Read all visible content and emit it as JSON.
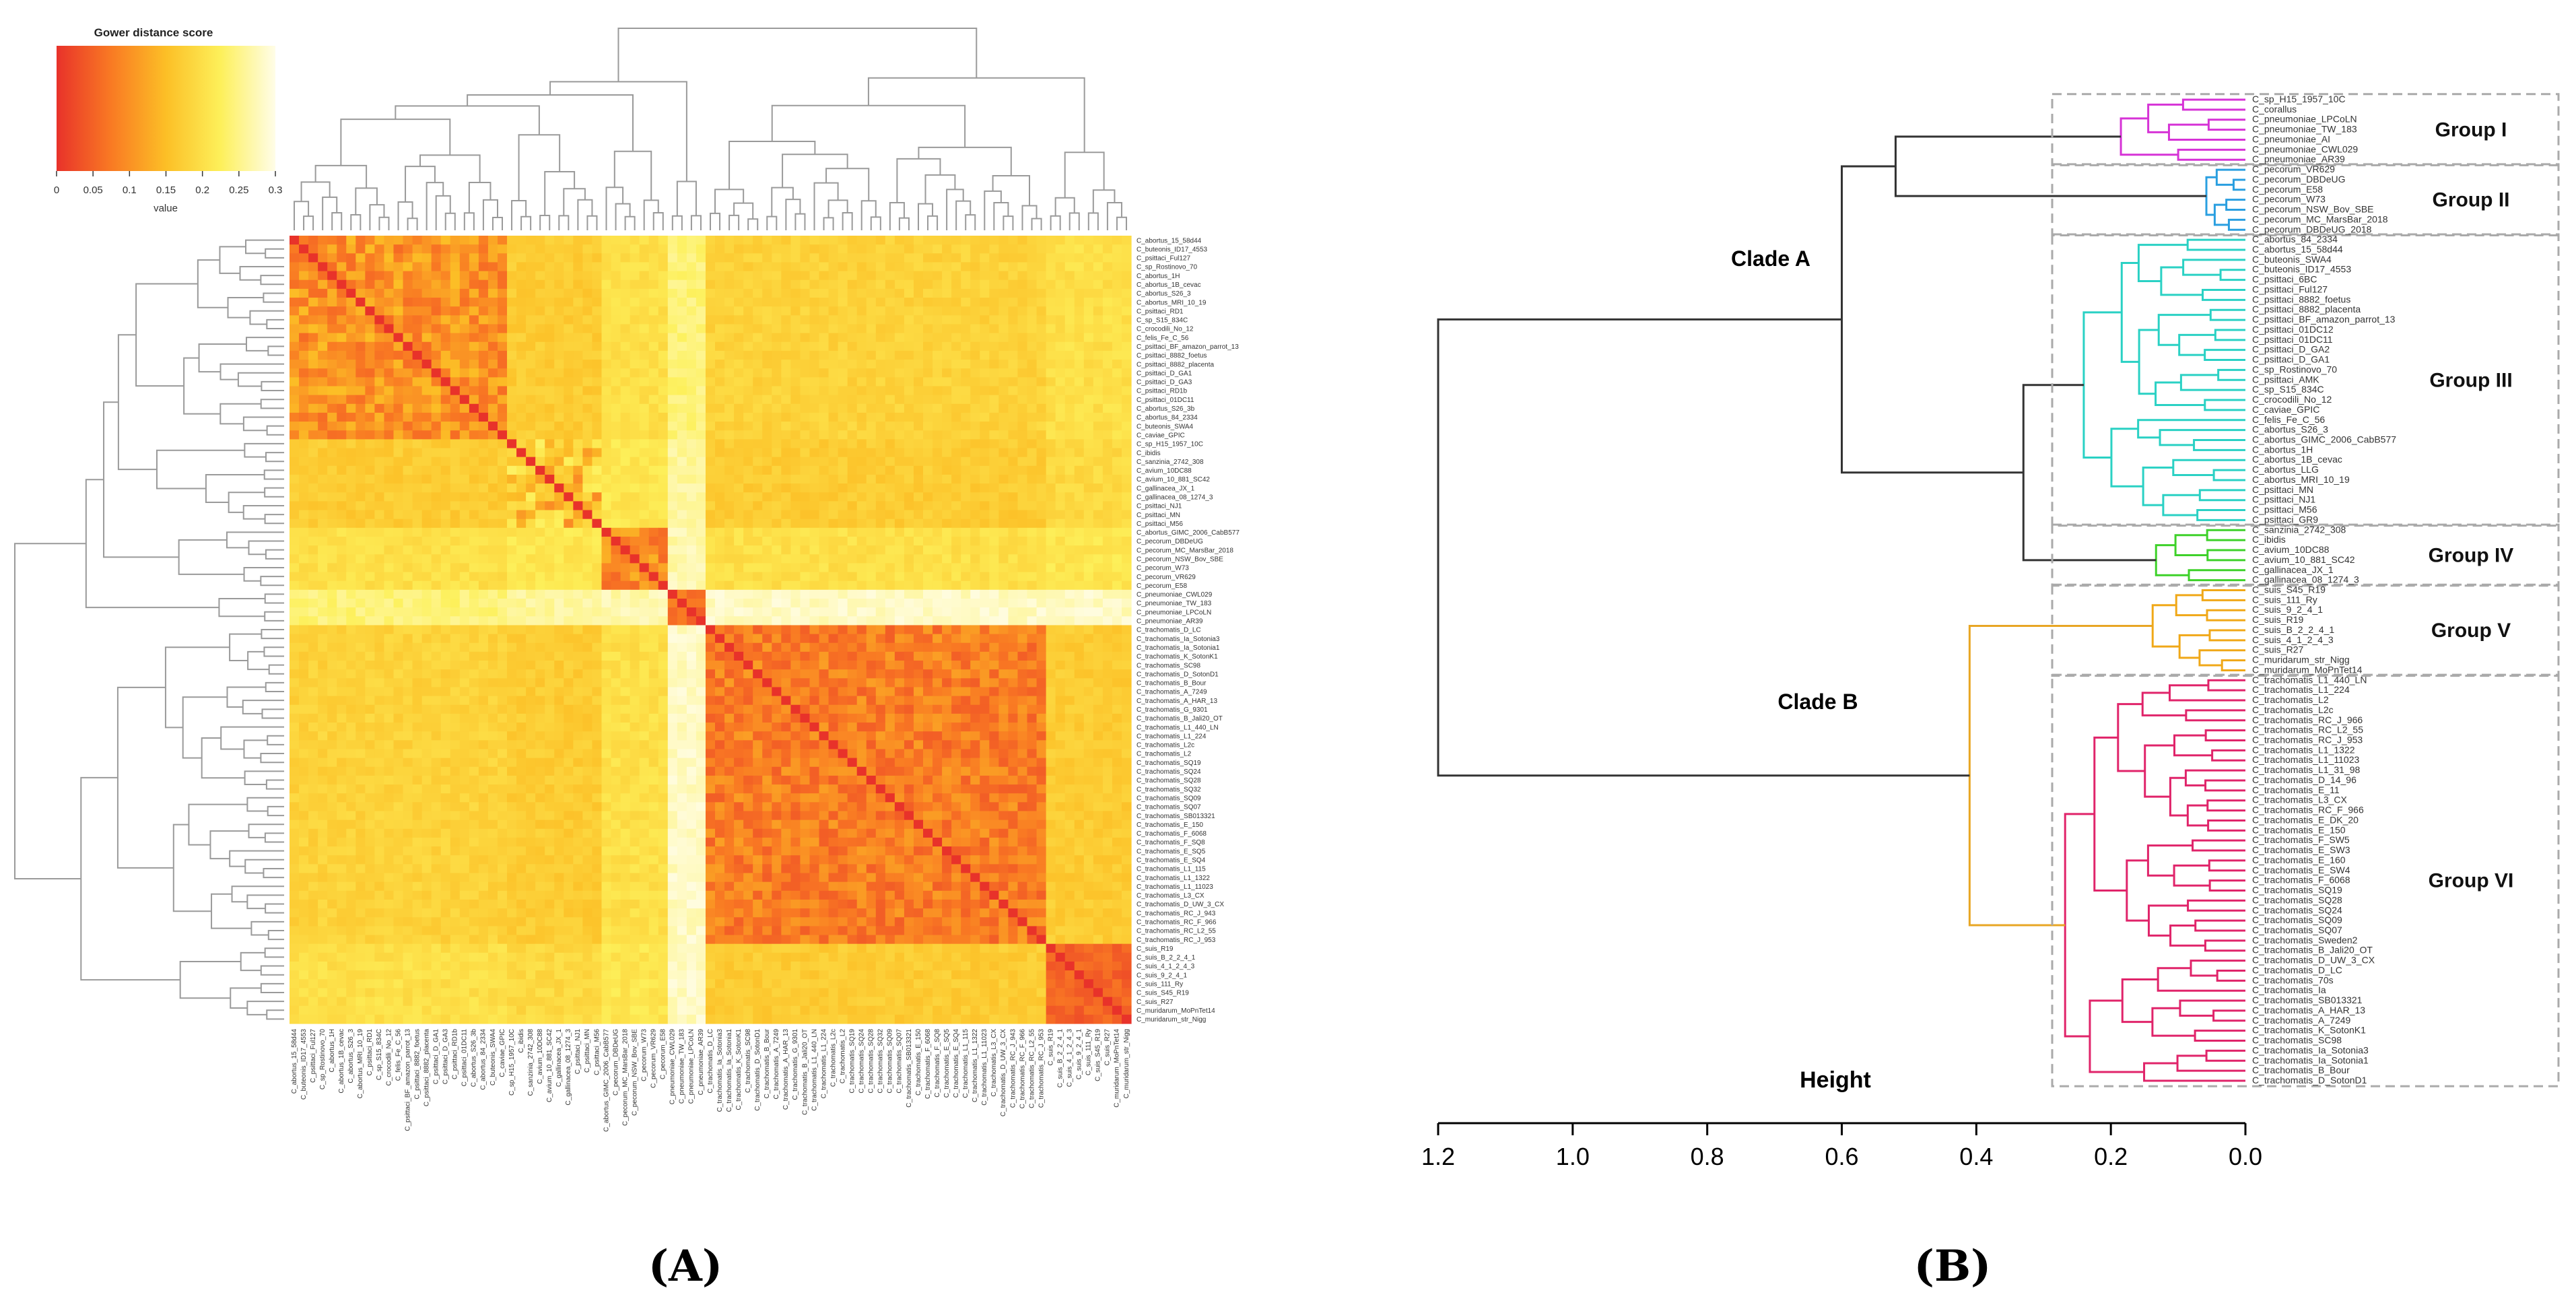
{
  "chart_data": [
    {
      "type": "heatmap",
      "panel": "(A)",
      "legend": {
        "title": "Gower distance score",
        "label": "value",
        "ticks": [
          "0",
          "0.05",
          "0.1",
          "0.15",
          "0.2",
          "0.25",
          "0.3"
        ],
        "range": [
          0,
          0.3
        ],
        "colors": [
          "#e8322a",
          "#f97a23",
          "#fcbf26",
          "#fdf05a",
          "#fffde8"
        ]
      },
      "row_labels": [
        "C_abortus_15_58d44",
        "C_buteonis_ID17_4553",
        "C_psittaci_Ful127",
        "C_sp_Rostinovo_70",
        "C_abortus_1H",
        "C_abortus_1B_cevac",
        "C_abortus_S26_3",
        "C_abortus_MRI_10_19",
        "C_psittaci_RD1",
        "C_sp_S15_834C",
        "C_crocodili_No_12",
        "C_felis_Fe_C_56",
        "C_psittaci_BF_amazon_parrot_13",
        "C_psittaci_8882_foetus",
        "C_psittaci_8882_placenta",
        "C_psittaci_D_GA1",
        "C_psittaci_D_GA3",
        "C_psittaci_RD1b",
        "C_psittaci_01DC11",
        "C_abortus_S26_3b",
        "C_abortus_84_2334",
        "C_buteonis_SWA4",
        "C_caviae_GPIC",
        "C_sp_H15_1957_10C",
        "C_ibidis",
        "C_sanzinia_2742_308",
        "C_avium_10DC88",
        "C_avium_10_881_SC42",
        "C_gallinacea_JX_1",
        "C_gallinacea_08_1274_3",
        "C_psittaci_NJ1",
        "C_psittaci_MN",
        "C_psittaci_M56",
        "C_abortus_GIMC_2006_CabB577",
        "C_pecorum_DBDeUG",
        "C_pecorum_MC_MarsBar_2018",
        "C_pecorum_NSW_Bov_SBE",
        "C_pecorum_W73",
        "C_pecorum_VR629",
        "C_pecorum_E58",
        "C_pneumoniae_CWL029",
        "C_pneumoniae_TW_183",
        "C_pneumoniae_LPCoLN",
        "C_pneumoniae_AR39",
        "C_trachomatis_D_LC",
        "C_trachomatis_Ia_Sotonia3",
        "C_trachomatis_Ia_Sotonia1",
        "C_trachomatis_K_SotonK1",
        "C_trachomatis_SC98",
        "C_trachomatis_D_SotonD1",
        "C_trachomatis_B_Bour",
        "C_trachomatis_A_7249",
        "C_trachomatis_A_HAR_13",
        "C_trachomatis_G_9301",
        "C_trachomatis_B_Jali20_OT",
        "C_trachomatis_L1_440_LN",
        "C_trachomatis_L1_224",
        "C_trachomatis_L2c",
        "C_trachomatis_L2",
        "C_trachomatis_SQ19",
        "C_trachomatis_SQ24",
        "C_trachomatis_SQ28",
        "C_trachomatis_SQ32",
        "C_trachomatis_SQ09",
        "C_trachomatis_SQ07",
        "C_trachomatis_SB013321",
        "C_trachomatis_E_150",
        "C_trachomatis_F_6068",
        "C_trachomatis_F_SQ8",
        "C_trachomatis_E_SQ5",
        "C_trachomatis_E_SQ4",
        "C_trachomatis_L1_115",
        "C_trachomatis_L1_1322",
        "C_trachomatis_L1_11023",
        "C_trachomatis_L3_CX",
        "C_trachomatis_D_UW_3_CX",
        "C_trachomatis_RC_J_943",
        "C_trachomatis_RC_F_966",
        "C_trachomatis_RC_L2_55",
        "C_trachomatis_RC_J_953",
        "C_suis_R19",
        "C_suis_B_2_2_4_1",
        "C_suis_4_1_2_4_3",
        "C_suis_9_2_4_1",
        "C_suis_111_Ry",
        "C_suis_S45_R19",
        "C_suis_R27",
        "C_muridarum_MoPnTet14",
        "C_muridarum_str_Nigg"
      ],
      "column_labels_note": "same taxa as rows, clustered order"
    },
    {
      "type": "dendrogram",
      "panel": "(B)",
      "axis_title": "Height",
      "ticks": [
        "1.2",
        "1.0",
        "0.8",
        "0.6",
        "0.4",
        "0.2",
        "0.0"
      ],
      "xlim": [
        1.2,
        0.0
      ],
      "clades": [
        {
          "name": "Clade A",
          "height": 1.2
        },
        {
          "name": "Clade B",
          "height": 1.2
        }
      ],
      "groups": [
        {
          "name": "Group I",
          "color": "#d633d6",
          "merge_height": 0.52,
          "leaves": [
            "C_sp_H15_1957_10C",
            "C_corallus",
            "C_pneumoniae_LPCoLN",
            "C_pneumoniae_TW_183",
            "C_pneumoniae_AI",
            "C_pneumoniae_CWL029",
            "C_pneumoniae_AR39"
          ]
        },
        {
          "name": "Group II",
          "color": "#2a9fe0",
          "merge_height": 0.52,
          "leaves": [
            "C_pecorum_VR629",
            "C_pecorum_DBDeUG",
            "C_pecorum_E58",
            "C_pecorum_W73",
            "C_pecorum_NSW_Bov_SBE",
            "C_pecorum_MC_MarsBar_2018",
            "C_pecorum_DBDeUG_2018"
          ]
        },
        {
          "name": "Group III",
          "color": "#2ad1c4",
          "merge_height": 0.34,
          "leaves": [
            "C_abortus_84_2334",
            "C_abortus_15_58d44",
            "C_buteonis_SWA4",
            "C_buteonis_ID17_4553",
            "C_psittaci_6BC",
            "C_psittaci_Ful127",
            "C_psittaci_8882_foetus",
            "C_psittaci_8882_placenta",
            "C_psittaci_BF_amazon_parrot_13",
            "C_psittaci_01DC12",
            "C_psittaci_01DC11",
            "C_psittaci_D_GA2",
            "C_psittaci_D_GA1",
            "C_sp_Rostinovo_70",
            "C_psittaci_AMK",
            "C_sp_S15_834C",
            "C_crocodili_No_12",
            "C_caviae_GPIC",
            "C_felis_Fe_C_56",
            "C_abortus_S26_3",
            "C_abortus_GIMC_2006_CabB577",
            "C_abortus_1H",
            "C_abortus_1B_cevac",
            "C_abortus_LLG",
            "C_abortus_MRI_10_19",
            "C_psittaci_MN",
            "C_psittaci_NJ1",
            "C_psittaci_M56",
            "C_psittaci_GR9"
          ]
        },
        {
          "name": "Group IV",
          "color": "#3ed12a",
          "merge_height": 0.34,
          "leaves": [
            "C_sanzinia_2742_308",
            "C_ibidis",
            "C_avium_10DC88",
            "C_avium_10_881_SC42",
            "C_gallinacea_JX_1",
            "C_gallinacea_08_1274_3"
          ]
        },
        {
          "name": "Group V",
          "color": "#f0a818",
          "merge_height": 0.41,
          "leaves": [
            "C_suis_S45_R19",
            "C_suis_111_Ry",
            "C_suis_9_2_4_1",
            "C_suis_R19",
            "C_suis_B_2_2_4_1",
            "C_suis_4_1_2_4_3",
            "C_suis_R27",
            "C_muridarum_str_Nigg",
            "C_muridarum_MoPnTet14"
          ]
        },
        {
          "name": "Group VI",
          "color": "#e0246a",
          "merge_height": 0.41,
          "leaves": [
            "C_trachomatis_L1_440_LN",
            "C_trachomatis_L1_224",
            "C_trachomatis_L2",
            "C_trachomatis_L2c",
            "C_trachomatis_RC_J_966",
            "C_trachomatis_RC_L2_55",
            "C_trachomatis_RC_J_953",
            "C_trachomatis_L1_1322",
            "C_trachomatis_L1_11023",
            "C_trachomatis_L1_31_98",
            "C_trachomatis_D_14_96",
            "C_trachomatis_E_11",
            "C_trachomatis_L3_CX",
            "C_trachomatis_RC_F_966",
            "C_trachomatis_E_DK_20",
            "C_trachomatis_E_150",
            "C_trachomatis_F_SW5",
            "C_trachomatis_E_SW3",
            "C_trachomatis_E_160",
            "C_trachomatis_E_SW4",
            "C_trachomatis_F_6068",
            "C_trachomatis_SQ19",
            "C_trachomatis_SQ28",
            "C_trachomatis_SQ24",
            "C_trachomatis_SQ09",
            "C_trachomatis_SQ07",
            "C_trachomatis_Sweden2",
            "C_trachomatis_B_Jali20_OT",
            "C_trachomatis_D_UW_3_CX",
            "C_trachomatis_D_LC",
            "C_trachomatis_70s",
            "C_trachomatis_Ia",
            "C_trachomatis_SB013321",
            "C_trachomatis_A_HAR_13",
            "C_trachomatis_A_7249",
            "C_trachomatis_K_SotonK1",
            "C_trachomatis_SC98",
            "C_trachomatis_Ia_Sotonia3",
            "C_trachomatis_Ia_Sotonia1",
            "C_trachomatis_B_Bour",
            "C_trachomatis_D_SotonD1"
          ]
        }
      ]
    }
  ]
}
